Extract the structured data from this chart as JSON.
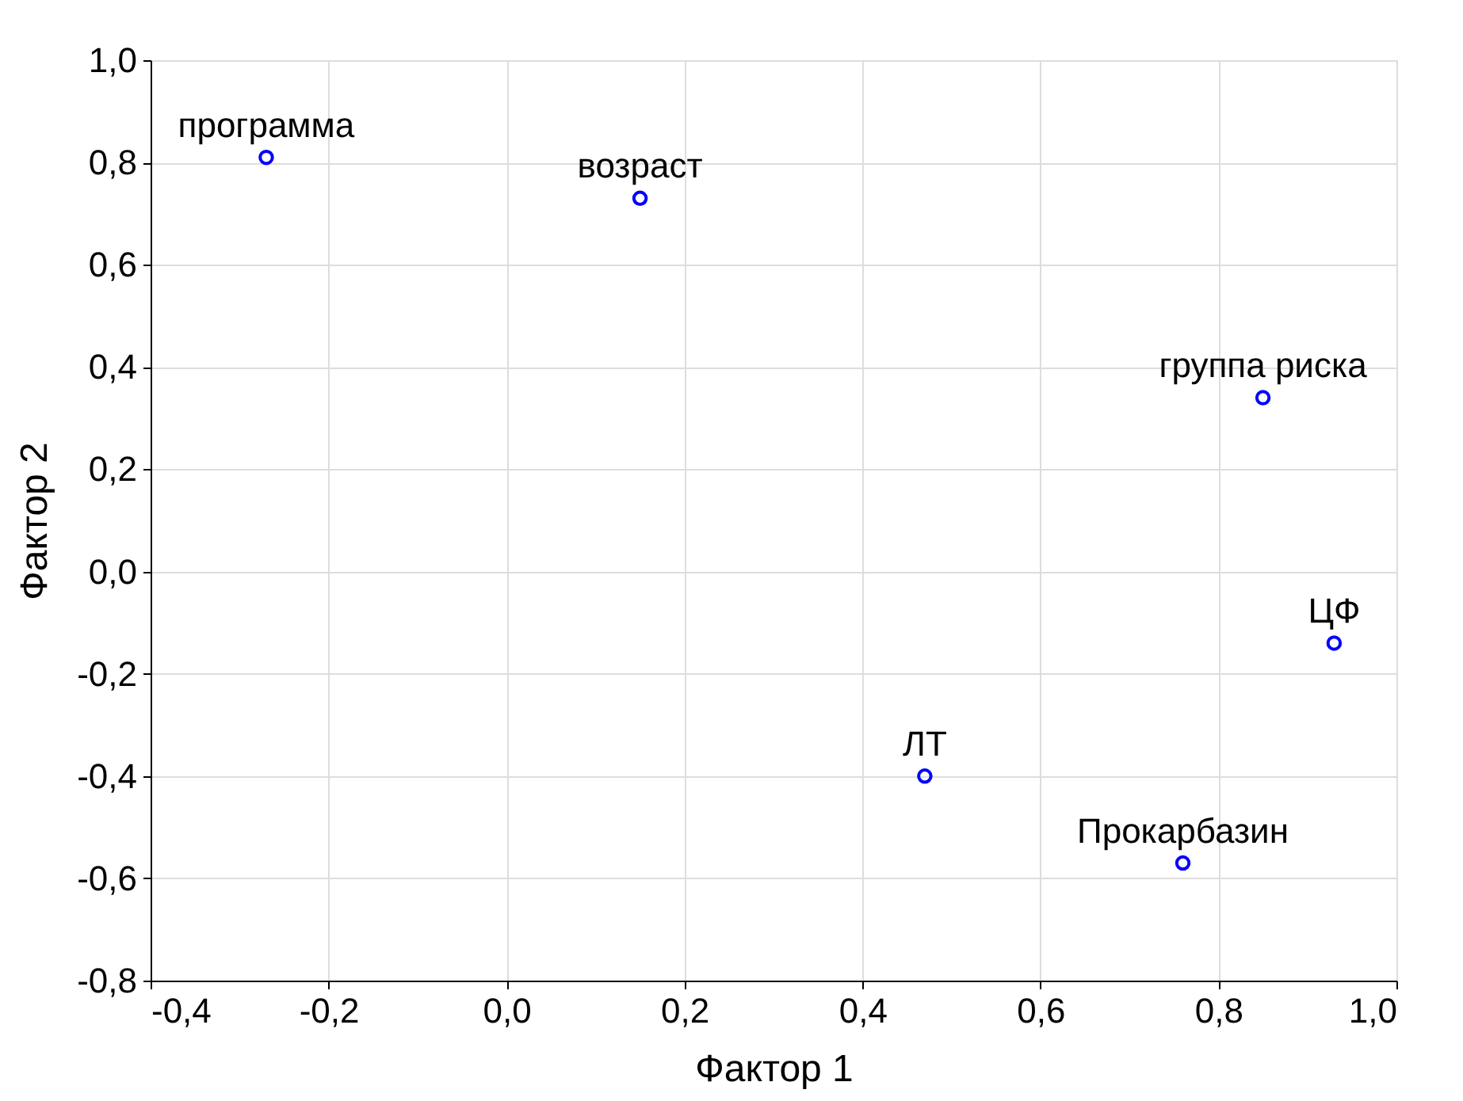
{
  "chart_data": {
    "type": "scatter",
    "xlabel": "Фактор 1",
    "ylabel": "Фактор 2",
    "x": [
      -0.27,
      0.15,
      0.85,
      0.93,
      0.47,
      0.76
    ],
    "series": [
      {
        "color": "#0000ff",
        "values": [
          0.81,
          0.73,
          0.34,
          -0.14,
          -0.4,
          -0.57
        ]
      }
    ],
    "annotations": [
      {
        "text": "программа",
        "x": -0.27,
        "y": 0.81
      },
      {
        "text": "возраст",
        "x": 0.15,
        "y": 0.73
      },
      {
        "text": "группа риска",
        "x": 0.85,
        "y": 0.34
      },
      {
        "text": "ЦФ",
        "x": 0.93,
        "y": -0.14
      },
      {
        "text": "ЛТ",
        "x": 0.47,
        "y": -0.4
      },
      {
        "text": "Прокарбазин",
        "x": 0.76,
        "y": -0.57
      }
    ],
    "xlim": [
      -0.4,
      1.0
    ],
    "xticks": [
      {
        "value": -0.4,
        "label": "-0,4"
      },
      {
        "value": -0.2,
        "label": "-0,2"
      },
      {
        "value": 0.0,
        "label": "0,0"
      },
      {
        "value": 0.2,
        "label": "0,2"
      },
      {
        "value": 0.4,
        "label": "0,4"
      },
      {
        "value": 0.6,
        "label": "0,6"
      },
      {
        "value": 0.8,
        "label": "0,8"
      },
      {
        "value": 1.0,
        "label": "1,0"
      }
    ],
    "ylim": [
      -0.8,
      1.0
    ],
    "yticks": [
      {
        "value": -0.8,
        "label": "-0,8"
      },
      {
        "value": -0.6,
        "label": "-0,6"
      },
      {
        "value": -0.4,
        "label": "-0,4"
      },
      {
        "value": -0.2,
        "label": "-0,2"
      },
      {
        "value": 0.0,
        "label": "0,0"
      },
      {
        "value": 0.2,
        "label": "0,2"
      },
      {
        "value": 0.4,
        "label": "0,4"
      },
      {
        "value": 0.6,
        "label": "0,6"
      },
      {
        "value": 0.8,
        "label": "0,8"
      },
      {
        "value": 1.0,
        "label": "1,0"
      }
    ],
    "grid": true,
    "marker": "circle"
  }
}
